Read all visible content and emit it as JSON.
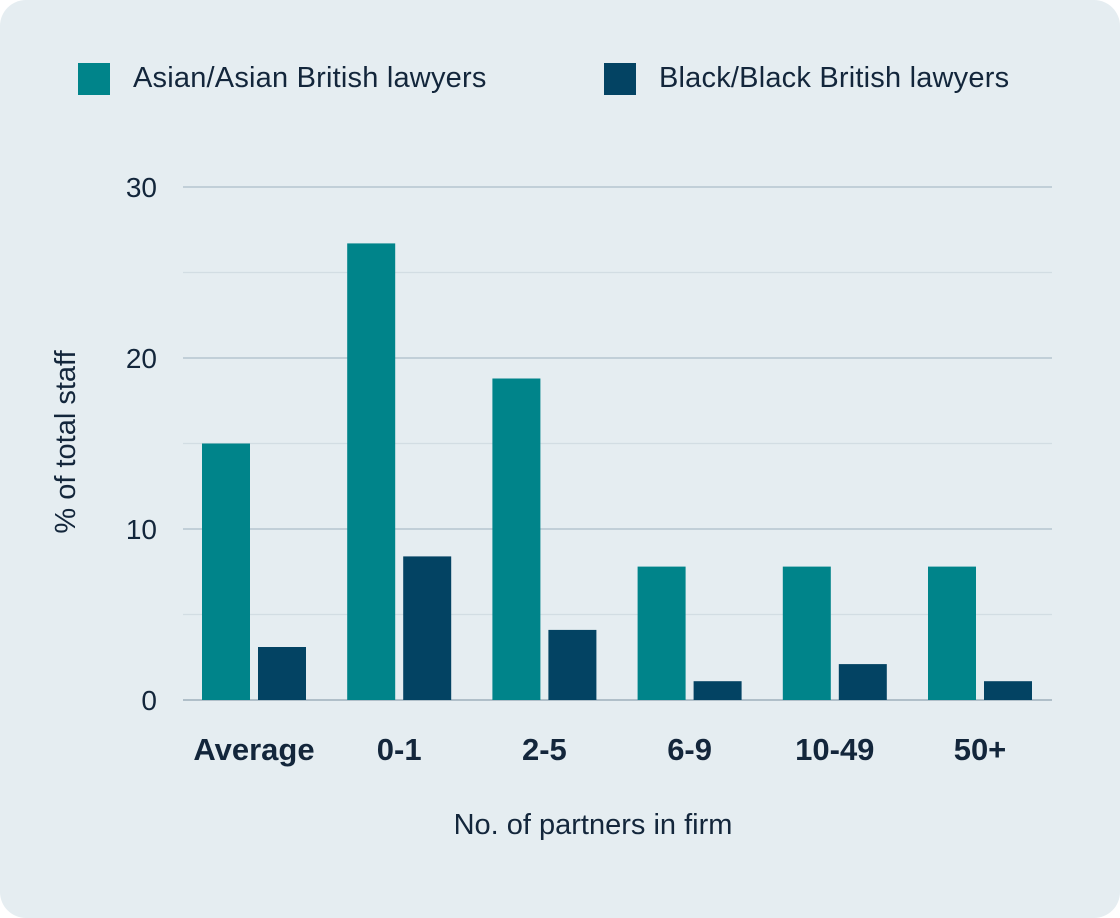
{
  "chart_data": {
    "type": "bar",
    "title": "",
    "xlabel": "No. of partners in firm",
    "ylabel": "% of total staff",
    "categories": [
      "Average",
      "0-1",
      "2-5",
      "6-9",
      "10-49",
      "50+"
    ],
    "series": [
      {
        "name": "Asian/Asian British lawyers",
        "color": "#00848a",
        "values": [
          15,
          26.7,
          18.8,
          7.8,
          7.8,
          7.8
        ]
      },
      {
        "name": "Black/Black British lawyers",
        "color": "#034363",
        "values": [
          3.1,
          8.4,
          4.1,
          1.1,
          2.1,
          1.1
        ]
      }
    ],
    "ylim": [
      0,
      30
    ],
    "yticks": [
      "0",
      "10",
      "20",
      "30"
    ],
    "grid": true,
    "legend_position": "top"
  }
}
